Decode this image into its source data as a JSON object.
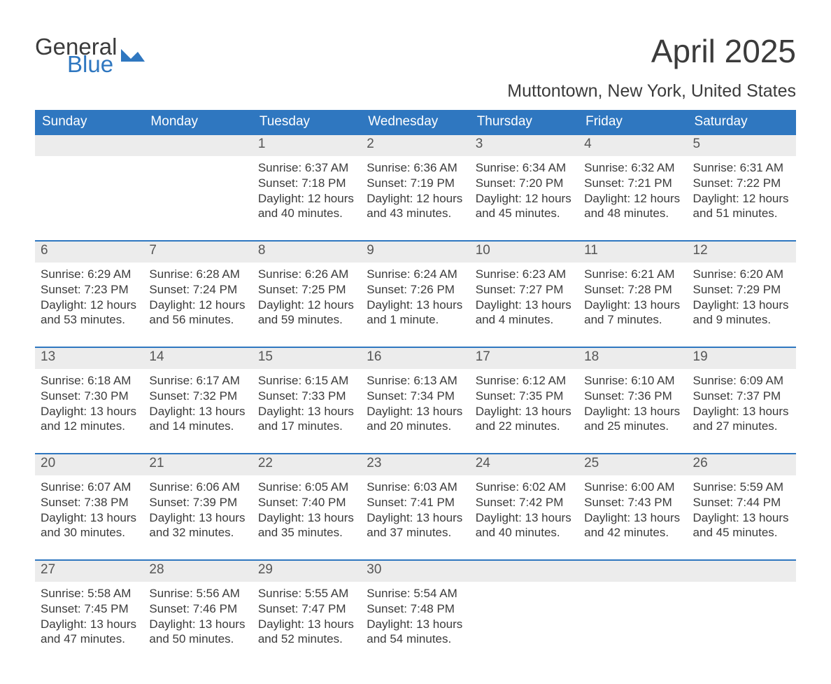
{
  "logo": {
    "general": "General",
    "blue": "Blue",
    "flag_color": "#2f77c0"
  },
  "title": "April 2025",
  "subtitle": "Muttontown, New York, United States",
  "colors": {
    "header_bg": "#2f77c0",
    "header_text": "#ffffff",
    "daynum_bg": "#ececec",
    "rule": "#2f77c0",
    "body_text": "#3b3b3b"
  },
  "weekdays": [
    "Sunday",
    "Monday",
    "Tuesday",
    "Wednesday",
    "Thursday",
    "Friday",
    "Saturday"
  ],
  "weeks": [
    [
      null,
      null,
      {
        "n": "1",
        "sr": "6:37 AM",
        "ss": "7:18 PM",
        "dl": "12 hours and 40 minutes."
      },
      {
        "n": "2",
        "sr": "6:36 AM",
        "ss": "7:19 PM",
        "dl": "12 hours and 43 minutes."
      },
      {
        "n": "3",
        "sr": "6:34 AM",
        "ss": "7:20 PM",
        "dl": "12 hours and 45 minutes."
      },
      {
        "n": "4",
        "sr": "6:32 AM",
        "ss": "7:21 PM",
        "dl": "12 hours and 48 minutes."
      },
      {
        "n": "5",
        "sr": "6:31 AM",
        "ss": "7:22 PM",
        "dl": "12 hours and 51 minutes."
      }
    ],
    [
      {
        "n": "6",
        "sr": "6:29 AM",
        "ss": "7:23 PM",
        "dl": "12 hours and 53 minutes."
      },
      {
        "n": "7",
        "sr": "6:28 AM",
        "ss": "7:24 PM",
        "dl": "12 hours and 56 minutes."
      },
      {
        "n": "8",
        "sr": "6:26 AM",
        "ss": "7:25 PM",
        "dl": "12 hours and 59 minutes."
      },
      {
        "n": "9",
        "sr": "6:24 AM",
        "ss": "7:26 PM",
        "dl": "13 hours and 1 minute."
      },
      {
        "n": "10",
        "sr": "6:23 AM",
        "ss": "7:27 PM",
        "dl": "13 hours and 4 minutes."
      },
      {
        "n": "11",
        "sr": "6:21 AM",
        "ss": "7:28 PM",
        "dl": "13 hours and 7 minutes."
      },
      {
        "n": "12",
        "sr": "6:20 AM",
        "ss": "7:29 PM",
        "dl": "13 hours and 9 minutes."
      }
    ],
    [
      {
        "n": "13",
        "sr": "6:18 AM",
        "ss": "7:30 PM",
        "dl": "13 hours and 12 minutes."
      },
      {
        "n": "14",
        "sr": "6:17 AM",
        "ss": "7:32 PM",
        "dl": "13 hours and 14 minutes."
      },
      {
        "n": "15",
        "sr": "6:15 AM",
        "ss": "7:33 PM",
        "dl": "13 hours and 17 minutes."
      },
      {
        "n": "16",
        "sr": "6:13 AM",
        "ss": "7:34 PM",
        "dl": "13 hours and 20 minutes."
      },
      {
        "n": "17",
        "sr": "6:12 AM",
        "ss": "7:35 PM",
        "dl": "13 hours and 22 minutes."
      },
      {
        "n": "18",
        "sr": "6:10 AM",
        "ss": "7:36 PM",
        "dl": "13 hours and 25 minutes."
      },
      {
        "n": "19",
        "sr": "6:09 AM",
        "ss": "7:37 PM",
        "dl": "13 hours and 27 minutes."
      }
    ],
    [
      {
        "n": "20",
        "sr": "6:07 AM",
        "ss": "7:38 PM",
        "dl": "13 hours and 30 minutes."
      },
      {
        "n": "21",
        "sr": "6:06 AM",
        "ss": "7:39 PM",
        "dl": "13 hours and 32 minutes."
      },
      {
        "n": "22",
        "sr": "6:05 AM",
        "ss": "7:40 PM",
        "dl": "13 hours and 35 minutes."
      },
      {
        "n": "23",
        "sr": "6:03 AM",
        "ss": "7:41 PM",
        "dl": "13 hours and 37 minutes."
      },
      {
        "n": "24",
        "sr": "6:02 AM",
        "ss": "7:42 PM",
        "dl": "13 hours and 40 minutes."
      },
      {
        "n": "25",
        "sr": "6:00 AM",
        "ss": "7:43 PM",
        "dl": "13 hours and 42 minutes."
      },
      {
        "n": "26",
        "sr": "5:59 AM",
        "ss": "7:44 PM",
        "dl": "13 hours and 45 minutes."
      }
    ],
    [
      {
        "n": "27",
        "sr": "5:58 AM",
        "ss": "7:45 PM",
        "dl": "13 hours and 47 minutes."
      },
      {
        "n": "28",
        "sr": "5:56 AM",
        "ss": "7:46 PM",
        "dl": "13 hours and 50 minutes."
      },
      {
        "n": "29",
        "sr": "5:55 AM",
        "ss": "7:47 PM",
        "dl": "13 hours and 52 minutes."
      },
      {
        "n": "30",
        "sr": "5:54 AM",
        "ss": "7:48 PM",
        "dl": "13 hours and 54 minutes."
      },
      null,
      null,
      null
    ]
  ],
  "labels": {
    "sunrise": "Sunrise: ",
    "sunset": "Sunset: ",
    "daylight": "Daylight: "
  }
}
